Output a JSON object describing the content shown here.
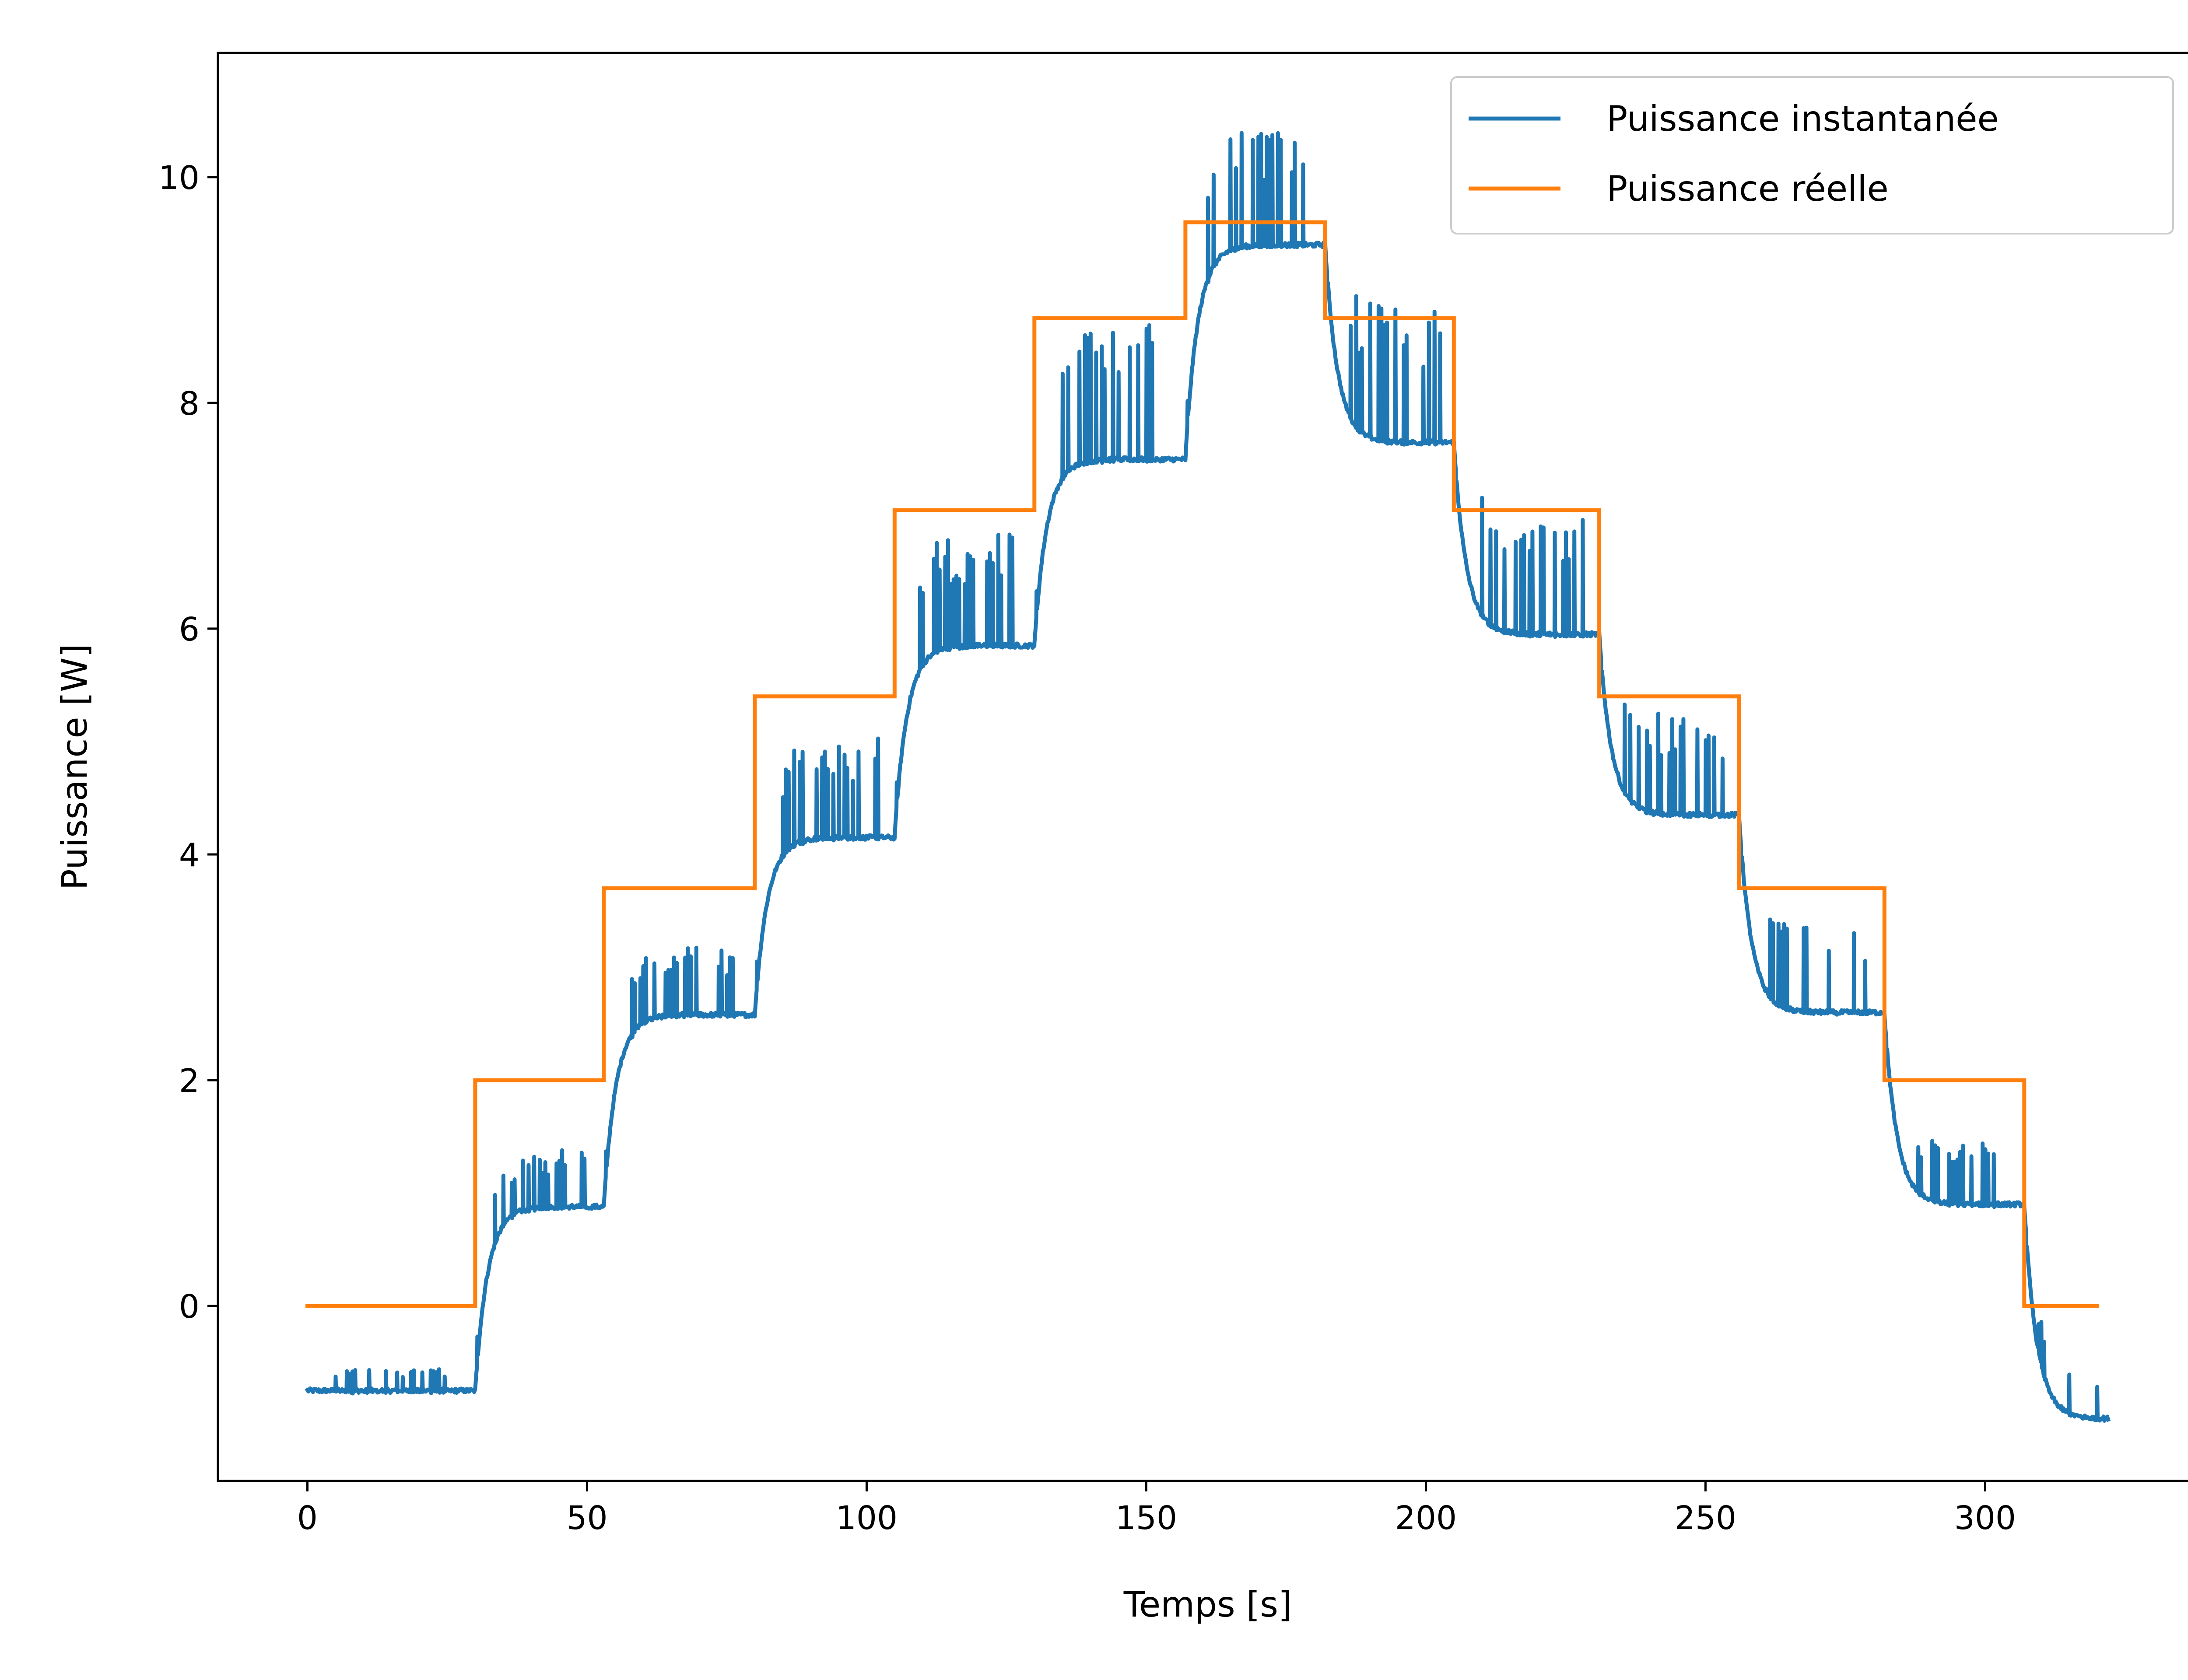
{
  "chart_data": {
    "type": "line",
    "title": "",
    "xlabel": "Temps [s]",
    "ylabel": "Puissance [W]",
    "xlim": [
      -16,
      338
    ],
    "ylim": [
      -1.55,
      11.1
    ],
    "xticks": [
      0,
      50,
      100,
      150,
      200,
      250,
      300
    ],
    "yticks": [
      0,
      2,
      4,
      6,
      8,
      10
    ],
    "grid": false,
    "legend": "top-right",
    "series": [
      {
        "name": "Puissance instantanée",
        "color": "#1f77b4",
        "steps": [
          {
            "t0": 0,
            "t1": 30,
            "base": -0.75,
            "peak": -0.55
          },
          {
            "t0": 30,
            "t1": 53,
            "base": 0.88,
            "peak": 1.4
          },
          {
            "t0": 53,
            "t1": 80,
            "base": 2.58,
            "peak": 3.18
          },
          {
            "t0": 80,
            "t1": 105,
            "base": 4.15,
            "peak": 5.05
          },
          {
            "t0": 105,
            "t1": 130,
            "base": 5.85,
            "peak": 6.85
          },
          {
            "t0": 130,
            "t1": 157,
            "base": 7.5,
            "peak": 8.75
          },
          {
            "t0": 157,
            "t1": 182,
            "base": 9.4,
            "peak": 10.45
          },
          {
            "t0": 182,
            "t1": 205,
            "base": 7.65,
            "peak": 8.85
          },
          {
            "t0": 205,
            "t1": 231,
            "base": 5.95,
            "peak": 7.05
          },
          {
            "t0": 231,
            "t1": 256,
            "base": 4.35,
            "peak": 5.25
          },
          {
            "t0": 256,
            "t1": 282,
            "base": 2.6,
            "peak": 3.35
          },
          {
            "t0": 282,
            "t1": 307,
            "base": 0.9,
            "peak": 1.45
          },
          {
            "t0": 307,
            "t1": 322,
            "base": -1.0,
            "peak": -0.62
          }
        ]
      },
      {
        "name": "Puissance réelle",
        "color": "#ff7f0e",
        "x": [
          0,
          30,
          53,
          80,
          105,
          130,
          157,
          182,
          205,
          231,
          256,
          282,
          307,
          320
        ],
        "y": [
          0,
          2.0,
          3.7,
          5.4,
          7.05,
          8.75,
          9.6,
          8.75,
          7.05,
          5.4,
          3.7,
          2.0,
          0,
          0
        ]
      }
    ]
  }
}
